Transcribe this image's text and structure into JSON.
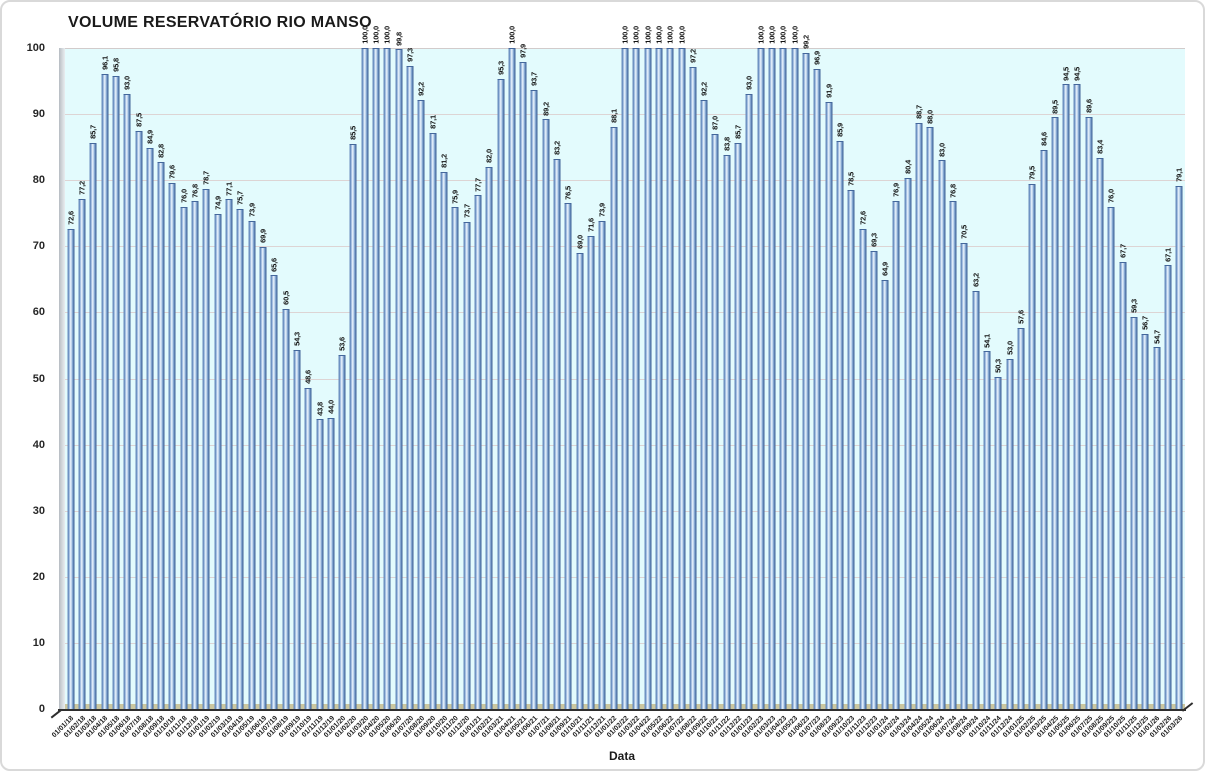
{
  "title": "VOLUME RESERVATÓRIO RIO MANSO",
  "chart_data": {
    "type": "bar",
    "title": "VOLUME RESERVATÓRIO RIO MANSO",
    "xlabel": "Data",
    "ylabel": "",
    "ylim": [
      0,
      100
    ],
    "yticks": [
      0,
      10,
      20,
      30,
      40,
      50,
      60,
      70,
      80,
      90,
      100
    ],
    "grid": true,
    "legend": "none",
    "decimal_separator": ",",
    "categories": [
      "01/01/18",
      "01/02/18",
      "01/03/18",
      "01/04/18",
      "01/05/18",
      "01/06/18",
      "01/07/18",
      "01/08/18",
      "01/09/18",
      "01/10/18",
      "01/11/18",
      "01/12/18",
      "01/01/19",
      "01/02/19",
      "01/03/19",
      "01/04/19",
      "01/05/19",
      "01/06/19",
      "01/07/19",
      "01/08/19",
      "01/09/19",
      "01/10/19",
      "01/11/19",
      "01/12/19",
      "01/01/20",
      "01/02/20",
      "01/03/20",
      "01/04/20",
      "01/05/20",
      "01/06/20",
      "01/07/20",
      "01/08/20",
      "01/09/20",
      "01/10/20",
      "01/11/20",
      "01/12/20",
      "01/01/21",
      "01/02/21",
      "01/03/21",
      "01/04/21",
      "01/05/21",
      "01/06/21",
      "01/07/21",
      "01/08/21",
      "01/09/21",
      "01/10/21",
      "01/11/21",
      "01/12/21",
      "01/01/22",
      "01/02/22",
      "01/03/22",
      "01/04/22",
      "01/05/22",
      "01/06/22",
      "01/07/22",
      "01/08/22",
      "01/09/22",
      "01/10/22",
      "01/11/22",
      "01/12/22",
      "01/01/23",
      "01/02/23",
      "01/03/23",
      "01/04/23",
      "01/05/23",
      "01/06/23",
      "01/07/23",
      "01/08/23",
      "01/09/23",
      "01/10/23",
      "01/11/23",
      "01/12/23",
      "01/01/24",
      "01/02/24",
      "01/03/24",
      "01/04/24",
      "01/05/24",
      "01/06/24",
      "01/07/24",
      "01/08/24",
      "01/09/24",
      "01/10/24",
      "01/11/24",
      "01/12/24",
      "01/01/25",
      "01/02/25",
      "01/03/25",
      "01/04/25",
      "01/05/25",
      "01/06/25",
      "01/07/25",
      "01/08/25",
      "01/09/25",
      "01/10/25",
      "01/11/25",
      "01/12/25",
      "01/01/26",
      "01/02/26",
      "01/03/26"
    ],
    "values": [
      72.6,
      77.2,
      85.7,
      96.1,
      95.8,
      93.0,
      87.5,
      84.9,
      82.8,
      79.6,
      76.0,
      76.8,
      78.7,
      74.9,
      77.1,
      75.7,
      73.9,
      69.9,
      65.6,
      60.5,
      54.3,
      48.6,
      43.8,
      44.0,
      53.6,
      85.5,
      100.0,
      100.0,
      100.0,
      99.8,
      97.3,
      92.2,
      87.1,
      81.2,
      75.9,
      73.7,
      77.7,
      82.0,
      95.3,
      100.0,
      97.9,
      93.7,
      89.2,
      83.2,
      76.5,
      69.0,
      71.6,
      73.9,
      88.1,
      100.0,
      100.0,
      100.0,
      100.0,
      100.0,
      100.0,
      97.2,
      92.2,
      87.0,
      83.8,
      85.7,
      93.0,
      100.0,
      100.0,
      100.0,
      100.0,
      99.2,
      96.9,
      91.9,
      85.9,
      78.5,
      72.6,
      69.3,
      64.9,
      76.9,
      80.4,
      88.7,
      88.0,
      83.0,
      76.8,
      70.5,
      63.2,
      54.1,
      50.3,
      53.0,
      57.6,
      79.5,
      84.6,
      89.5,
      94.5,
      94.5,
      89.6,
      83.4,
      76.0,
      67.7,
      59.3,
      56.7,
      54.7,
      67.1,
      79.1
    ]
  },
  "colors": {
    "bar_base": "#4f81bd",
    "bar_highlight": "#e9f3fc",
    "bar_edge_dark": "#3a5c8e",
    "plot_background": "#e3fbfd",
    "wall_gray": "#c4c9ce",
    "floor_tan": "#cbc79f",
    "gridline": "#ddd4d4",
    "axis_line": "#2e2e2e",
    "text": "#1a1a1a",
    "chart_border": "#d9d9d9"
  }
}
